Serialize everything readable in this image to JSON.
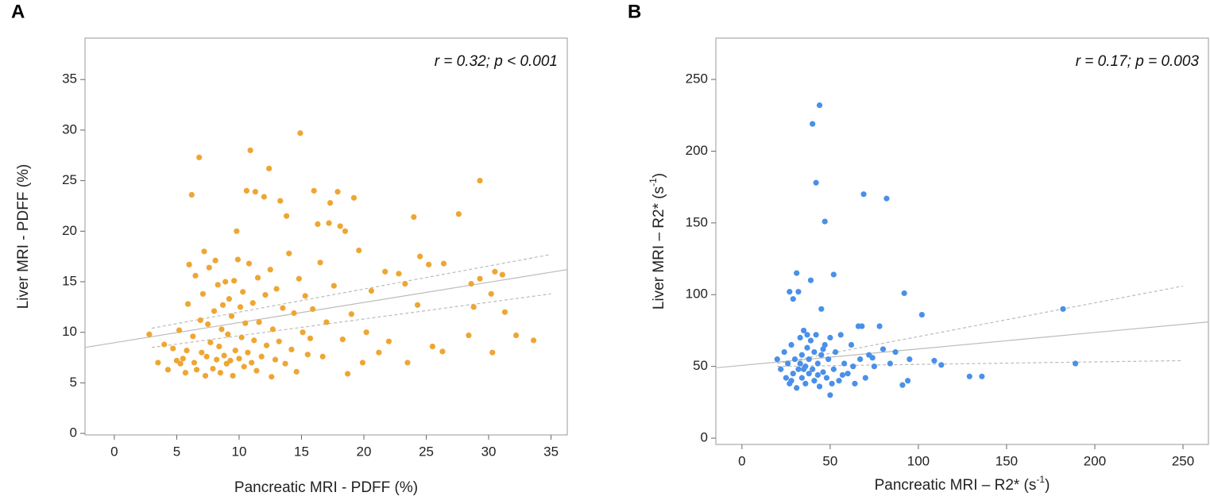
{
  "chart_data": [
    {
      "type": "scatter",
      "panel_label": "A",
      "annotation": "r = 0.32; p < 0.001",
      "xlabel": "Pancreatic MRI - PDFF (%)",
      "ylabel": "Liver MRI - PDFF (%)",
      "xlim": [
        -2.35,
        36.3
      ],
      "ylim": [
        -0.15,
        39.1
      ],
      "xticks": [
        0,
        5,
        10,
        15,
        20,
        25,
        30,
        35
      ],
      "yticks": [
        0,
        5,
        10,
        15,
        20,
        25,
        30,
        35
      ],
      "series": [
        {
          "color": "#eea633",
          "x": [
            2.8,
            3.5,
            4.0,
            4.3,
            4.7,
            5.0,
            5.2,
            5.3,
            5.5,
            5.7,
            5.8,
            5.9,
            6.0,
            6.2,
            6.3,
            6.4,
            6.5,
            6.6,
            6.8,
            6.9,
            7.0,
            7.1,
            7.2,
            7.3,
            7.4,
            7.5,
            7.6,
            7.7,
            7.9,
            8.0,
            8.1,
            8.2,
            8.3,
            8.4,
            8.5,
            8.6,
            8.7,
            8.8,
            8.9,
            9.0,
            9.1,
            9.2,
            9.3,
            9.4,
            9.5,
            9.6,
            9.7,
            9.8,
            9.9,
            10.0,
            10.1,
            10.2,
            10.3,
            10.4,
            10.5,
            10.6,
            10.7,
            10.8,
            10.9,
            11.0,
            11.1,
            11.2,
            11.3,
            11.4,
            11.5,
            11.6,
            11.8,
            12.0,
            12.1,
            12.2,
            12.4,
            12.5,
            12.6,
            12.7,
            12.9,
            13.0,
            13.2,
            13.3,
            13.5,
            13.7,
            13.8,
            14.0,
            14.2,
            14.4,
            14.6,
            14.8,
            14.9,
            15.1,
            15.3,
            15.5,
            15.7,
            15.9,
            16.0,
            16.3,
            16.5,
            16.7,
            17.0,
            17.2,
            17.3,
            17.6,
            17.9,
            18.1,
            18.3,
            18.5,
            18.7,
            19.0,
            19.2,
            19.6,
            19.9,
            20.2,
            20.6,
            21.2,
            21.7,
            22.0,
            22.8,
            23.3,
            23.5,
            24.0,
            24.3,
            24.5,
            25.2,
            25.5,
            26.3,
            26.4,
            27.6,
            28.4,
            28.6,
            28.8,
            29.3,
            29.3,
            30.2,
            30.3,
            30.5,
            31.1,
            31.3,
            32.2,
            33.6
          ],
          "values": [
            9.8,
            7.0,
            8.8,
            6.3,
            8.4,
            7.2,
            10.2,
            6.9,
            7.4,
            6.0,
            8.2,
            12.8,
            16.7,
            23.6,
            9.6,
            7.0,
            15.6,
            6.3,
            27.3,
            11.2,
            8.0,
            13.8,
            18.0,
            5.7,
            7.6,
            10.8,
            16.4,
            9.0,
            6.4,
            12.1,
            17.1,
            7.3,
            14.7,
            8.6,
            6.0,
            10.3,
            12.7,
            7.7,
            15.0,
            6.9,
            9.8,
            13.3,
            7.2,
            11.6,
            5.7,
            15.1,
            8.2,
            20.0,
            17.2,
            7.4,
            12.5,
            9.5,
            14.0,
            6.6,
            10.9,
            24.0,
            8.0,
            16.8,
            28.0,
            7.0,
            12.9,
            9.2,
            23.9,
            6.2,
            15.4,
            11.0,
            7.6,
            23.4,
            13.7,
            8.7,
            26.2,
            16.2,
            5.6,
            10.3,
            7.3,
            14.3,
            9.1,
            23.0,
            12.4,
            6.9,
            21.5,
            17.8,
            8.3,
            11.9,
            6.1,
            15.3,
            29.7,
            10.0,
            13.6,
            7.8,
            9.4,
            12.3,
            24.0,
            20.7,
            16.9,
            7.6,
            11.0,
            20.8,
            22.8,
            14.6,
            23.9,
            20.5,
            9.3,
            20.0,
            5.9,
            11.8,
            23.3,
            18.1,
            7.0,
            10.0,
            14.1,
            8.0,
            16.0,
            9.1,
            15.8,
            14.8,
            7.0,
            21.4,
            12.7,
            17.5,
            16.7,
            8.6,
            8.1,
            16.8,
            21.7,
            9.7,
            14.8,
            12.5,
            15.3,
            25.0,
            13.8,
            8.0,
            16.0,
            15.7,
            12.0,
            9.7,
            9.2
          ]
        }
      ],
      "fit_lines": [
        {
          "color": "#bbbbbb",
          "dashed": false,
          "x": [
            -2.35,
            36.3
          ],
          "values": [
            8.5,
            16.2
          ]
        },
        {
          "color": "#bbbbbb",
          "dashed": true,
          "x": [
            3,
            35
          ],
          "values": [
            10.4,
            17.7
          ]
        },
        {
          "color": "#bbbbbb",
          "dashed": true,
          "x": [
            3,
            35
          ],
          "values": [
            8.5,
            13.8
          ]
        }
      ]
    },
    {
      "type": "scatter",
      "panel_label": "B",
      "annotation": "r = 0.17; p = 0.003",
      "xlabel": "Pancreatic MRI – R2* (s",
      "xlabel_sup": "-1",
      "xlabel_end": ")",
      "ylabel": "Liver MRI – R2* (s",
      "ylabel_sup": "-1",
      "ylabel_end": ")",
      "xlim": [
        -14.8,
        264.4
      ],
      "ylim": [
        -4.4,
        278.8
      ],
      "xticks": [
        0,
        50,
        100,
        150,
        200,
        250
      ],
      "yticks": [
        0,
        50,
        100,
        150,
        200,
        250
      ],
      "series": [
        {
          "color": "#4a90e8",
          "x": [
            20,
            22,
            24,
            25,
            26,
            27,
            27,
            28,
            29,
            29,
            30,
            31,
            31,
            32,
            32,
            33,
            34,
            34,
            35,
            36,
            36,
            37,
            38,
            38,
            39,
            39,
            40,
            40,
            41,
            41,
            42,
            42,
            43,
            44,
            44,
            45,
            45,
            46,
            47,
            47,
            48,
            49,
            50,
            50,
            52,
            52,
            53,
            55,
            56,
            58,
            60,
            62,
            64,
            66,
            67,
            68,
            69,
            70,
            72,
            75,
            78,
            80,
            82,
            84,
            87,
            91,
            92,
            94,
            95,
            102,
            109,
            113,
            129,
            136,
            182,
            189,
            35,
            28,
            33,
            37,
            43,
            46,
            51,
            57,
            63,
            74
          ],
          "values": [
            55,
            48,
            60,
            42,
            52,
            102,
            38,
            65,
            97,
            45,
            55,
            115,
            35,
            102,
            48,
            70,
            42,
            58,
            75,
            50,
            38,
            63,
            45,
            55,
            110,
            68,
            219,
            48,
            40,
            60,
            178,
            72,
            52,
            232,
            36,
            90,
            58,
            46,
            151,
            65,
            42,
            55,
            30,
            70,
            114,
            48,
            60,
            40,
            72,
            52,
            45,
            65,
            38,
            78,
            55,
            78,
            170,
            42,
            58,
            50,
            78,
            62,
            167,
            52,
            60,
            37,
            101,
            40,
            55,
            86,
            54,
            51,
            43,
            43,
            90,
            52,
            48,
            40,
            52,
            72,
            44,
            62,
            38,
            44,
            50,
            56
          ]
        }
      ],
      "fit_lines": [
        {
          "color": "#bbbbbb",
          "dashed": false,
          "x": [
            -14.8,
            264.4
          ],
          "values": [
            49,
            81
          ]
        },
        {
          "color": "#bbbbbb",
          "dashed": true,
          "x": [
            20,
            250
          ],
          "values": [
            52,
            106
          ]
        },
        {
          "color": "#bbbbbb",
          "dashed": true,
          "x": [
            20,
            250
          ],
          "values": [
            50,
            54
          ]
        }
      ]
    }
  ]
}
